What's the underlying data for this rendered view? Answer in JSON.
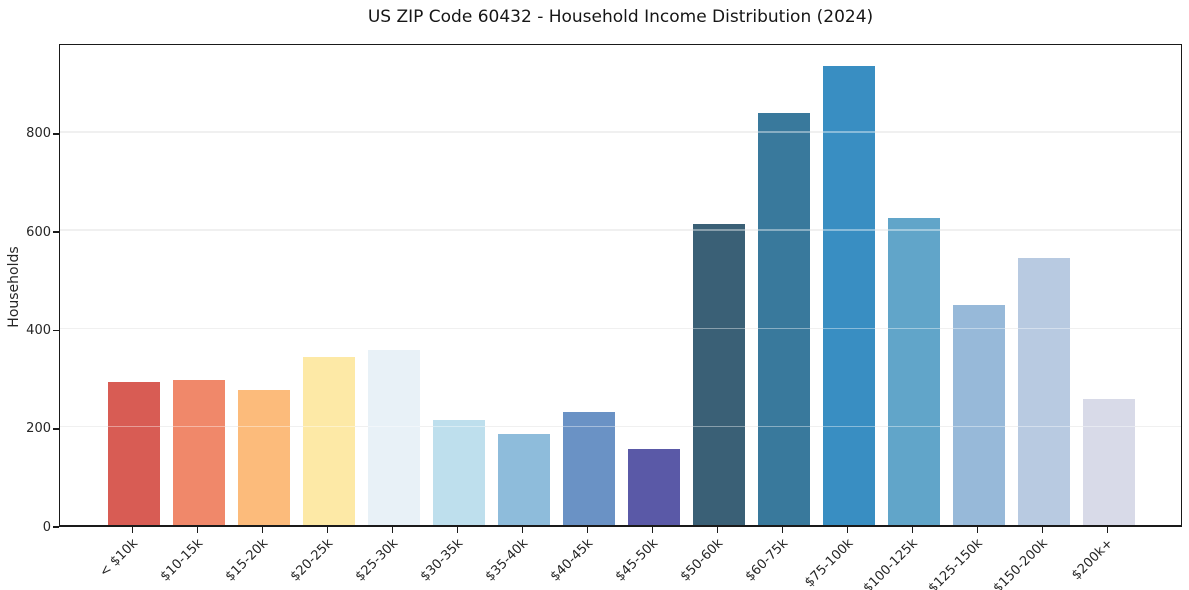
{
  "chart_data": {
    "type": "bar",
    "title": "US ZIP Code 60432 - Household Income Distribution (2024)",
    "xlabel": "",
    "ylabel": "Households",
    "categories": [
      "< $10k",
      "$10-15k",
      "$15-20k",
      "$20-25k",
      "$25-30k",
      "$30-35k",
      "$35-40k",
      "$40-45k",
      "$45-50k",
      "$50-60k",
      "$60-75k",
      "$75-100k",
      "$100-125k",
      "$125-150k",
      "$150-200k",
      "$200k+"
    ],
    "values": [
      292,
      295,
      274,
      342,
      357,
      214,
      186,
      231,
      154,
      613,
      838,
      934,
      624,
      448,
      543,
      257
    ],
    "bar_colors": [
      "#d85c54",
      "#f0886a",
      "#fcbb7b",
      "#fde9a6",
      "#e8f1f7",
      "#bedfed",
      "#8ebcdb",
      "#6a92c5",
      "#5a59a7",
      "#3a6076",
      "#39799c",
      "#398ec2",
      "#61a5c9",
      "#97b9d9",
      "#b8cae1",
      "#d8dae8"
    ],
    "yticks": [
      0,
      200,
      400,
      600,
      800
    ],
    "ylim": [
      0,
      983
    ],
    "grid": "horizontal-only",
    "legend": "none",
    "colors": {
      "axis": "#1a1a1a",
      "tick_text": "#262626",
      "gridline": "#e7e7e7",
      "background": "#ffffff"
    }
  }
}
